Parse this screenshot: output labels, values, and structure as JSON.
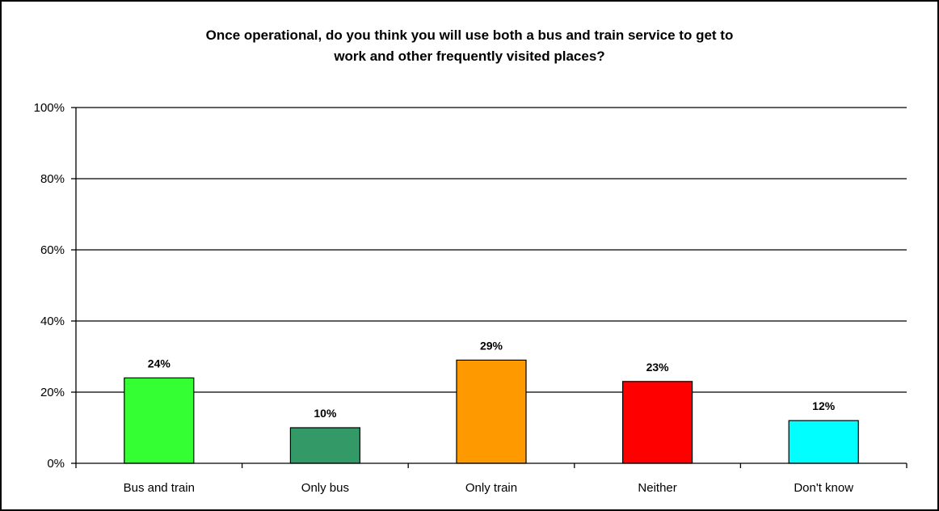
{
  "chart_data": {
    "type": "bar",
    "title_lines": [
      "Once operational, do you think you will use both a bus and train service to get to",
      "work and other frequently visited places?"
    ],
    "categories": [
      "Bus and train",
      "Only bus",
      "Only train",
      "Neither",
      "Don't know"
    ],
    "values": [
      24,
      10,
      29,
      23,
      12
    ],
    "data_labels": [
      "24%",
      "10%",
      "29%",
      "23%",
      "12%"
    ],
    "bar_colors": [
      "#33FF33",
      "#339966",
      "#FF9900",
      "#FF0000",
      "#00FFFF"
    ],
    "ylim": [
      0,
      100
    ],
    "yticks": [
      0,
      20,
      40,
      60,
      80,
      100
    ],
    "ytick_labels": [
      "0%",
      "20%",
      "40%",
      "60%",
      "80%",
      "100%"
    ],
    "xlabel": "",
    "ylabel": "",
    "grid": true,
    "legend": "none"
  }
}
